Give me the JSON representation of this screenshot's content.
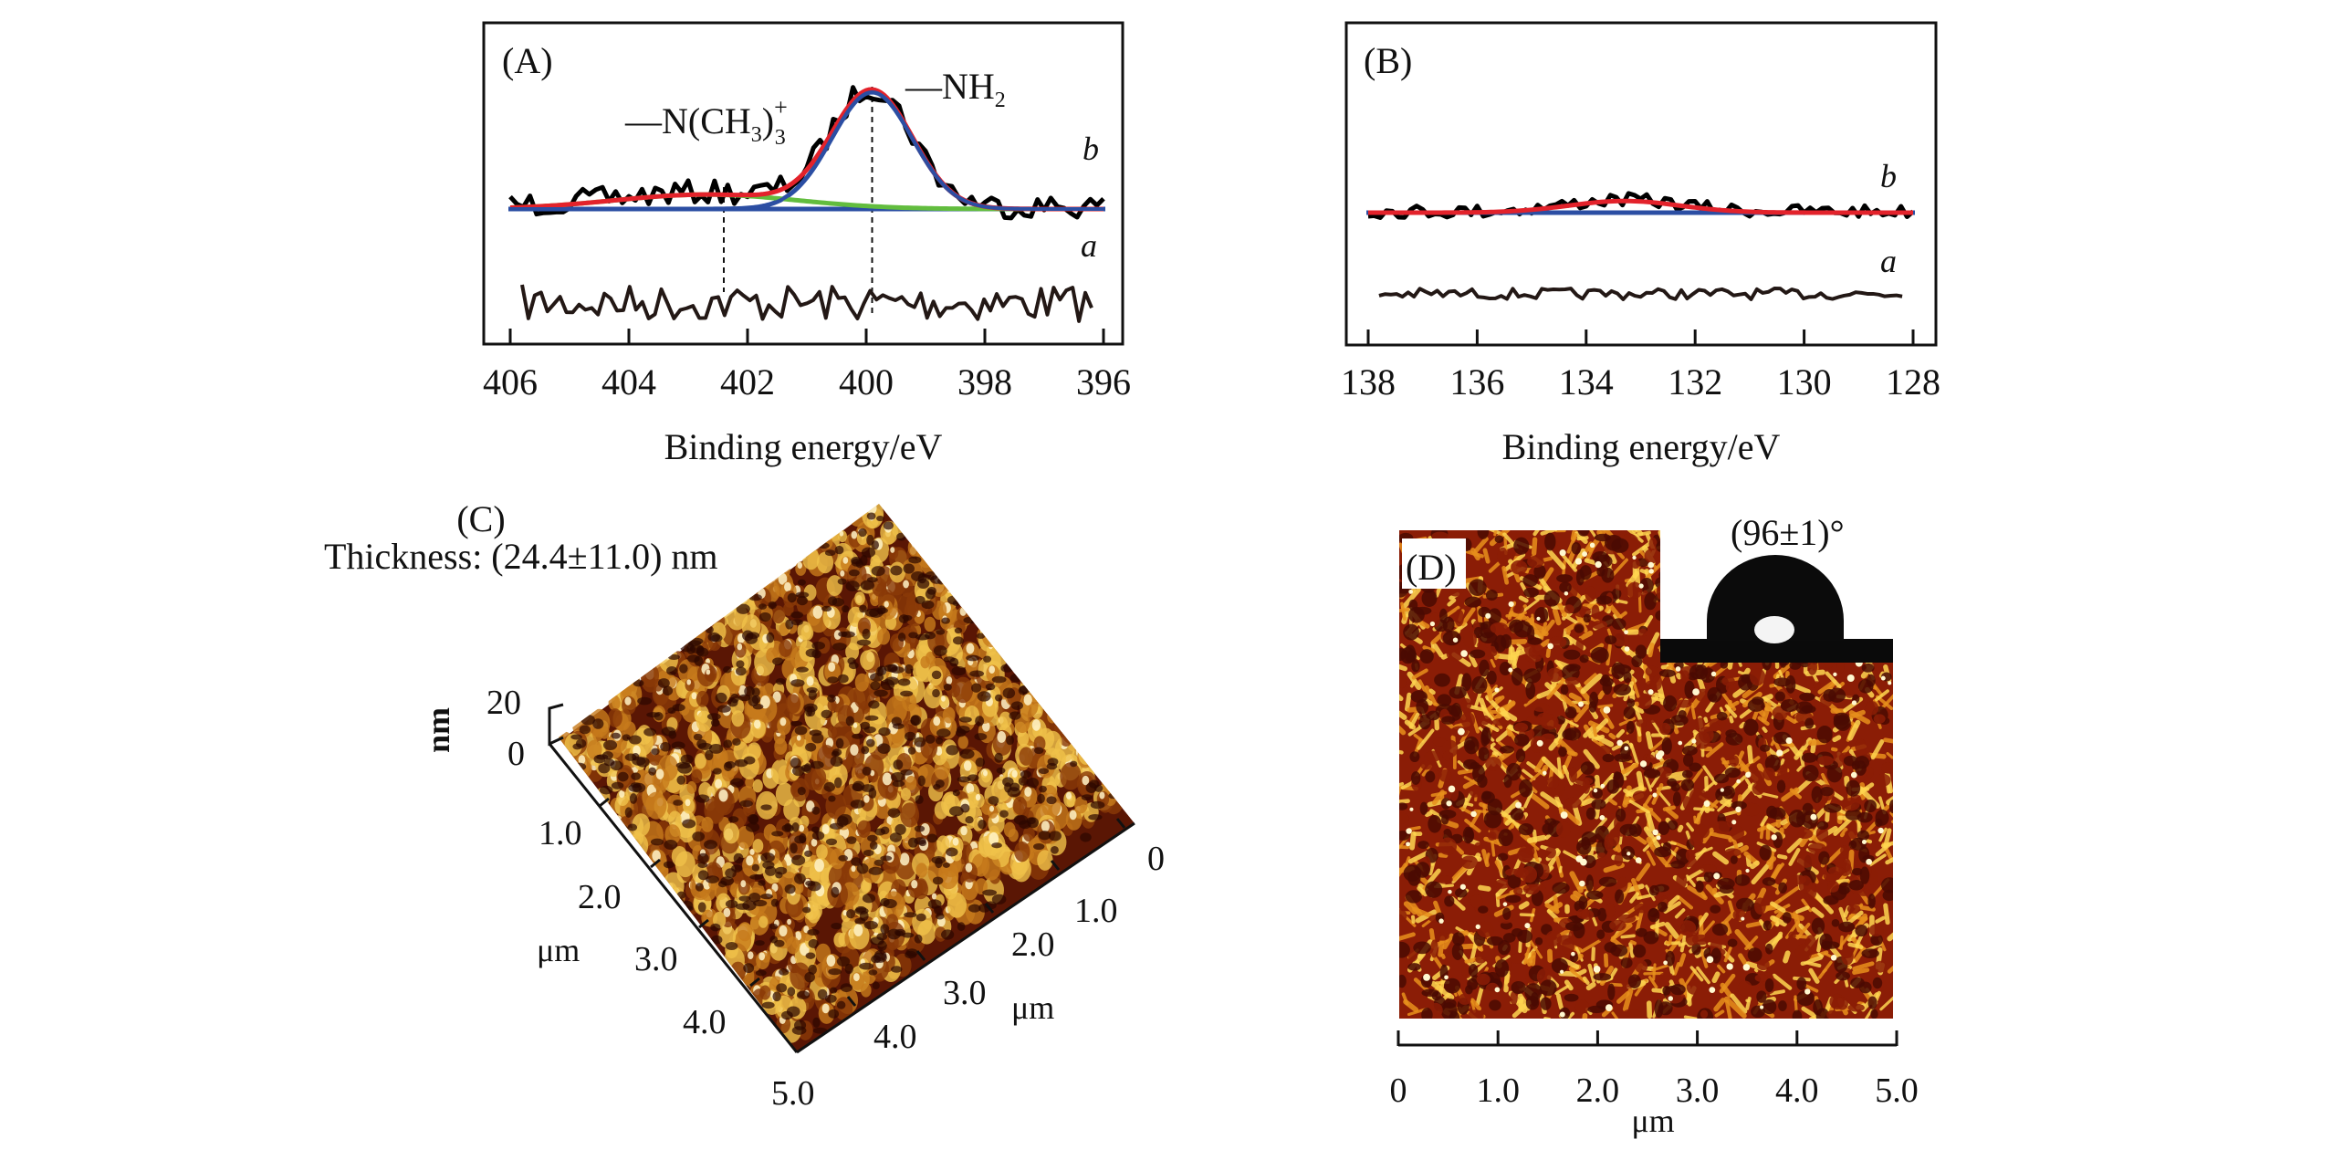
{
  "chart_data": [
    {
      "panel": "A",
      "type": "line",
      "panel_label": "(A)",
      "xlabel": "Binding energy/eV",
      "ylabel": "",
      "xlim": [
        406,
        396
      ],
      "x_reversed": true,
      "xticks": [
        406,
        404,
        402,
        400,
        398,
        396
      ],
      "tick_labels": [
        "406",
        "404",
        "402",
        "400",
        "398",
        "396"
      ],
      "y_axis_shown": false,
      "grid": false,
      "curve_labels": {
        "a": "a",
        "b": "b"
      },
      "annotations": [
        {
          "text": "—N(CH",
          "sub": "3",
          "close": ")",
          "sub2": "3",
          "sup": "+",
          "x": 402.4,
          "dashed_marker": true
        },
        {
          "text": "—NH",
          "sub": "2",
          "x": 399.9,
          "dashed_marker": true
        }
      ],
      "series": [
        {
          "name": "a",
          "role": "raw spectrum (sample a)",
          "color": "#231815",
          "description": "noisy flat baseline, no peaks"
        },
        {
          "name": "b",
          "role": "raw spectrum (sample b)",
          "color": "#000000",
          "description": "noisy spectrum with main peak near 400 eV"
        },
        {
          "name": "b-envelope",
          "role": "fitted envelope",
          "color": "#e3222b",
          "peak_ev": 400.0,
          "peak_rel_height": 1.0
        },
        {
          "name": "b-NH2",
          "role": "component —NH2",
          "color": "#2b4ea3",
          "center_ev": 399.9,
          "fwhm_ev": 1.6,
          "rel_height": 0.97
        },
        {
          "name": "b-N(CH3)3+",
          "role": "component —N(CH3)3+",
          "color": "#62bd3e",
          "center_ev": 402.7,
          "fwhm_ev": 3.6,
          "rel_height": 0.12
        },
        {
          "name": "b-background",
          "role": "baseline",
          "color": "#2b4ea3"
        }
      ]
    },
    {
      "panel": "B",
      "type": "line",
      "panel_label": "(B)",
      "xlabel": "Binding energy/eV",
      "ylabel": "",
      "xlim": [
        138,
        128
      ],
      "x_reversed": true,
      "xticks": [
        138,
        136,
        134,
        132,
        130,
        128
      ],
      "tick_labels": [
        "138",
        "136",
        "134",
        "132",
        "130",
        "128"
      ],
      "y_axis_shown": false,
      "grid": false,
      "curve_labels": {
        "a": "a",
        "b": "b"
      },
      "series": [
        {
          "name": "a",
          "role": "raw spectrum (sample a)",
          "color": "#231815",
          "description": "flat noisy baseline"
        },
        {
          "name": "b",
          "role": "raw spectrum (sample b)",
          "color": "#000000",
          "description": "weak broad peak near 133.3 eV"
        },
        {
          "name": "b-fit",
          "role": "fitted envelope",
          "color": "#e3222b",
          "center_ev": 133.3,
          "fwhm_ev": 2.4,
          "rel_height": 0.08
        },
        {
          "name": "b-background",
          "role": "baseline",
          "color": "#2b4ea3"
        }
      ]
    },
    {
      "panel": "C",
      "type": "heatmap",
      "panel_label": "(C)",
      "subtitle": "Thickness: (24.4±11.0) nm",
      "description": "3D AFM topography surface",
      "z_axis": {
        "label": "nm",
        "ticks": [
          "0",
          "20"
        ],
        "range": [
          0,
          20
        ]
      },
      "left_axis": {
        "label": "μm",
        "ticks": [
          "1.0",
          "2.0",
          "3.0",
          "4.0",
          "5.0"
        ]
      },
      "right_axis": {
        "label": "μm",
        "ticks": [
          "0",
          "1.0",
          "2.0",
          "3.0",
          "4.0"
        ]
      },
      "colormap": [
        "#2b0700",
        "#5a1604",
        "#8a3a08",
        "#c77a1b",
        "#f0c24a",
        "#fff3c8"
      ]
    },
    {
      "panel": "D",
      "type": "heatmap",
      "panel_label": "(D)",
      "description": "2D AFM height image with water contact angle inset",
      "inset_label": "(96±1)°",
      "contact_angle_deg": 96,
      "contact_angle_err_deg": 1,
      "x_axis": {
        "label": "μm",
        "ticks": [
          "0",
          "1.0",
          "2.0",
          "3.0",
          "4.0",
          "5.0"
        ],
        "range": [
          0,
          5
        ]
      },
      "colormap": [
        "#4a0a02",
        "#8b1d06",
        "#c2440f",
        "#e8901c",
        "#ffd650",
        "#fff8d0"
      ]
    }
  ]
}
